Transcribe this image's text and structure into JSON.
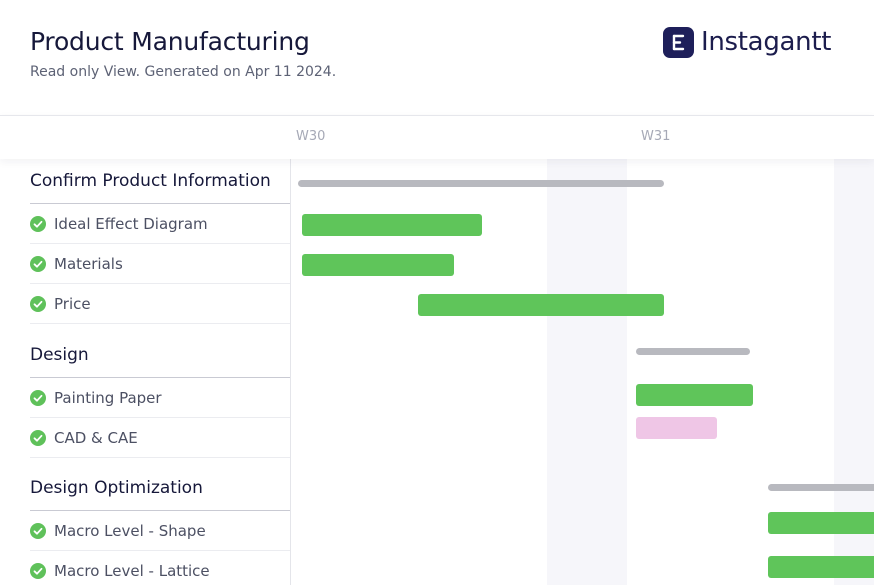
{
  "header": {
    "title": "Product Manufacturing",
    "subtitle": "Read only View. Generated on Apr 11 2024.",
    "brand_name": "Instagantt",
    "brand_icon": "instagantt-logo-icon"
  },
  "timeline": {
    "weeks": [
      "W30",
      "W31"
    ]
  },
  "colors": {
    "done_bar": "#5fc55a",
    "summary_bar": "#b8b9bf",
    "pending_bar": "#efc6e6",
    "check": "#5fc15a"
  },
  "groups": [
    {
      "name": "Confirm Product Information",
      "tasks": [
        {
          "name": "Ideal Effect Diagram",
          "status": "complete"
        },
        {
          "name": "Materials",
          "status": "complete"
        },
        {
          "name": "Price",
          "status": "complete"
        }
      ]
    },
    {
      "name": "Design",
      "tasks": [
        {
          "name": "Painting Paper",
          "status": "complete"
        },
        {
          "name": "CAD & CAE",
          "status": "complete"
        }
      ]
    },
    {
      "name": "Design Optimization",
      "tasks": [
        {
          "name": "Macro Level - Shape",
          "status": "complete"
        },
        {
          "name": "Macro Level - Lattice",
          "status": "complete"
        }
      ]
    }
  ]
}
